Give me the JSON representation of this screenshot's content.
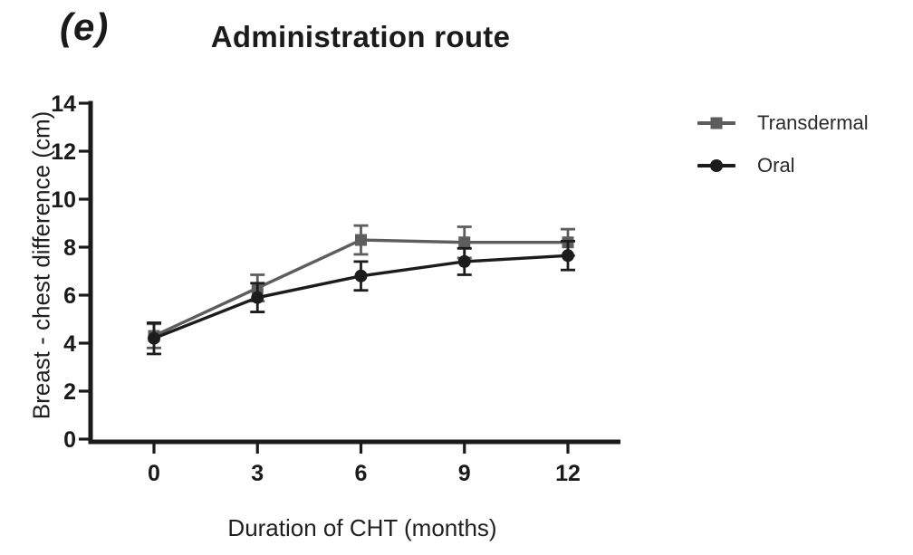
{
  "figure_label": "(e)",
  "chart_data": {
    "type": "line",
    "title": "Administration route",
    "xlabel": "Duration of CHT (months)",
    "ylabel": "Breast - chest difference (cm)",
    "x": [
      0,
      3,
      6,
      9,
      12
    ],
    "xticks": [
      "0",
      "3",
      "6",
      "9",
      "12"
    ],
    "yticks": [
      0,
      2,
      4,
      6,
      8,
      10,
      12,
      14
    ],
    "ylim": [
      0,
      14
    ],
    "grid": false,
    "legend_position": "right-outside",
    "error_bars": "symmetric-caps",
    "axis_color": "#1a1a1a",
    "series": [
      {
        "name": "Transdermal",
        "marker": "square",
        "color": "#5d5d5d",
        "values": [
          4.3,
          6.3,
          8.3,
          8.2,
          8.2
        ],
        "errors": [
          0.5,
          0.55,
          0.6,
          0.65,
          0.55
        ]
      },
      {
        "name": "Oral",
        "marker": "circle",
        "color": "#1c1c1c",
        "values": [
          4.2,
          5.9,
          6.8,
          7.4,
          7.65
        ],
        "errors": [
          0.65,
          0.6,
          0.6,
          0.55,
          0.6
        ]
      }
    ]
  }
}
